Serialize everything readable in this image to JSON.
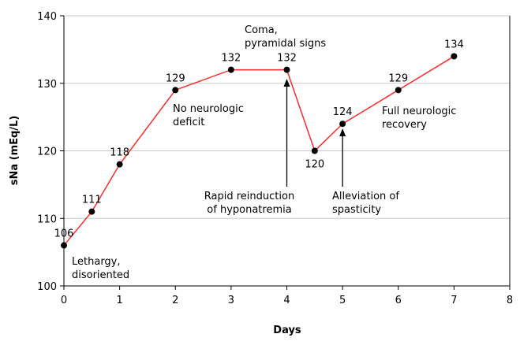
{
  "chart_data": {
    "type": "line",
    "xlabel": "Days",
    "ylabel": "sNa (mEq/L)",
    "xlim": [
      0,
      8
    ],
    "ylim": [
      100,
      140
    ],
    "xticks": [
      0,
      1,
      2,
      3,
      4,
      5,
      6,
      7,
      8
    ],
    "yticks": [
      100,
      110,
      120,
      130,
      140
    ],
    "grid": "horizontal",
    "series_color": "#ff2a2a",
    "series": [
      {
        "points": [
          {
            "x": 0,
            "y": 106,
            "label": "106"
          },
          {
            "x": 0.5,
            "y": 111,
            "label": "111"
          },
          {
            "x": 1,
            "y": 118,
            "label": "118"
          },
          {
            "x": 2,
            "y": 129,
            "label": "129"
          },
          {
            "x": 3,
            "y": 132,
            "label": "132"
          },
          {
            "x": 4,
            "y": 132,
            "label": "132"
          },
          {
            "x": 4.5,
            "y": 120,
            "label": "120"
          },
          {
            "x": 5,
            "y": 124,
            "label": "124"
          },
          {
            "x": 6,
            "y": 129,
            "label": "129"
          },
          {
            "x": 7,
            "y": 134,
            "label": "134"
          }
        ]
      }
    ],
    "annotations": [
      {
        "lines": [
          "Lethargy,",
          "disoriented"
        ]
      },
      {
        "lines": [
          "No neurologic",
          "deficit"
        ]
      },
      {
        "lines": [
          "Coma,",
          "pyramidal signs"
        ]
      },
      {
        "lines": [
          "Rapid reinduction",
          "of hyponatremia"
        ]
      },
      {
        "lines": [
          "Alleviation of",
          "spasticity"
        ]
      },
      {
        "lines": [
          "Full neurologic",
          "recovery"
        ]
      }
    ]
  }
}
